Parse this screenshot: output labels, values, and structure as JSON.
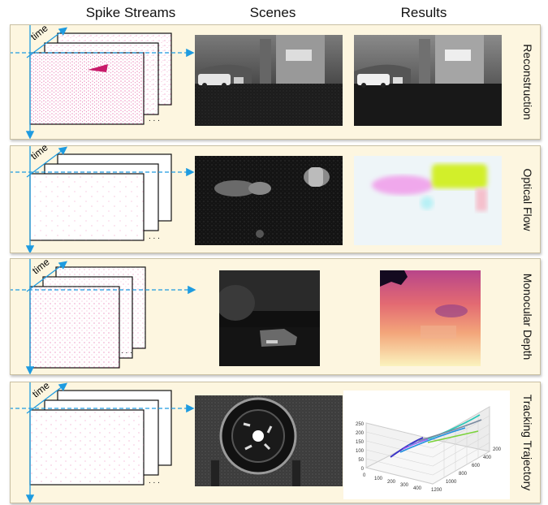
{
  "headers": {
    "spike": "Spike Streams",
    "scenes": "Scenes",
    "results": "Results"
  },
  "time_label": "time",
  "rows": [
    {
      "task": "Reconstruction"
    },
    {
      "task": "Optical Flow"
    },
    {
      "task": "Monocular Depth"
    },
    {
      "task": "Tracking Trajectory"
    }
  ],
  "trajectory_plot": {
    "z_ticks": [
      "250",
      "200",
      "150",
      "100",
      "50",
      "0"
    ],
    "x_ticks": [
      "0",
      "100",
      "200",
      "300",
      "400"
    ],
    "y_ticks": [
      "1200",
      "1000",
      "800",
      "600",
      "400",
      "200"
    ]
  },
  "colors": {
    "panel_bg": "#fdf6e0",
    "arrow": "#1e9be0",
    "spike": "#e0348a"
  }
}
